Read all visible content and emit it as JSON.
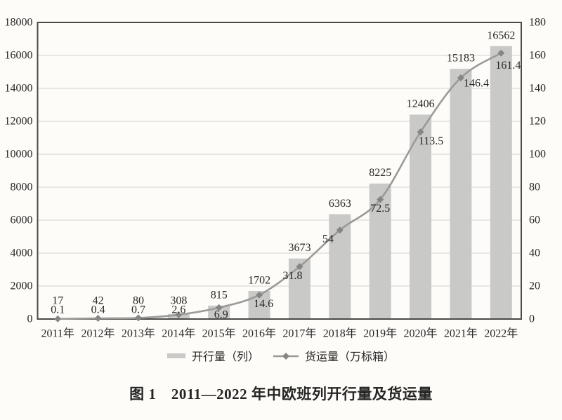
{
  "figure": {
    "caption": "图 1　2011—2022 年中欧班列开行量及货运量"
  },
  "chart_data": {
    "type": "combo",
    "categories": [
      "2011年",
      "2012年",
      "2013年",
      "2014年",
      "2015年",
      "2016年",
      "2017年",
      "2018年",
      "2019年",
      "2020年",
      "2021年",
      "2022年"
    ],
    "series": [
      {
        "name": "开行量（列）",
        "type": "bar",
        "axis": "left",
        "color": "#c9c9c7",
        "values": [
          17,
          42,
          80,
          308,
          815,
          1702,
          3673,
          6363,
          8225,
          12406,
          15183,
          16562
        ],
        "labels": [
          "17",
          "42",
          "80",
          "308",
          "815",
          "1702",
          "3673",
          "6363",
          "8225",
          "12406",
          "15183",
          "16562"
        ]
      },
      {
        "name": "货运量（万标箱）",
        "type": "line",
        "axis": "right",
        "color": "#9a9a98",
        "marker": "diamond",
        "marker_color": "#868684",
        "values": [
          0.1,
          0.4,
          0.7,
          2.6,
          6.9,
          14.6,
          31.8,
          54,
          72.5,
          113.5,
          146.4,
          161.4
        ],
        "labels": [
          "0.1",
          "0.4",
          "0.7",
          "2.6",
          "6.9",
          "14.6",
          "31.8",
          "54",
          "72.5",
          "113.5",
          "146.4",
          "161.4"
        ]
      }
    ],
    "axes": {
      "left": {
        "min": 0,
        "max": 18000,
        "step": 2000,
        "ticks": [
          "0",
          "2000",
          "4000",
          "6000",
          "8000",
          "10000",
          "12000",
          "14000",
          "16000",
          "18000"
        ]
      },
      "right": {
        "min": 0,
        "max": 180,
        "step": 20,
        "ticks": [
          "0",
          "20",
          "40",
          "60",
          "80",
          "100",
          "120",
          "140",
          "160",
          "180"
        ]
      }
    },
    "grid": true,
    "data_labels": true,
    "legend_position": "bottom",
    "layout": {
      "line_label_dx": [
        0,
        0,
        0,
        0,
        3,
        6,
        -10,
        -17,
        0,
        15,
        22,
        10
      ],
      "line_label_dy": [
        0,
        0,
        0,
        0,
        0,
        0,
        0,
        0,
        0,
        0,
        -5,
        5
      ]
    },
    "colors": {
      "background": "#fdfcf9",
      "grid": "#e2e0dd",
      "border": "#4a4a48",
      "text": "#262624"
    }
  }
}
